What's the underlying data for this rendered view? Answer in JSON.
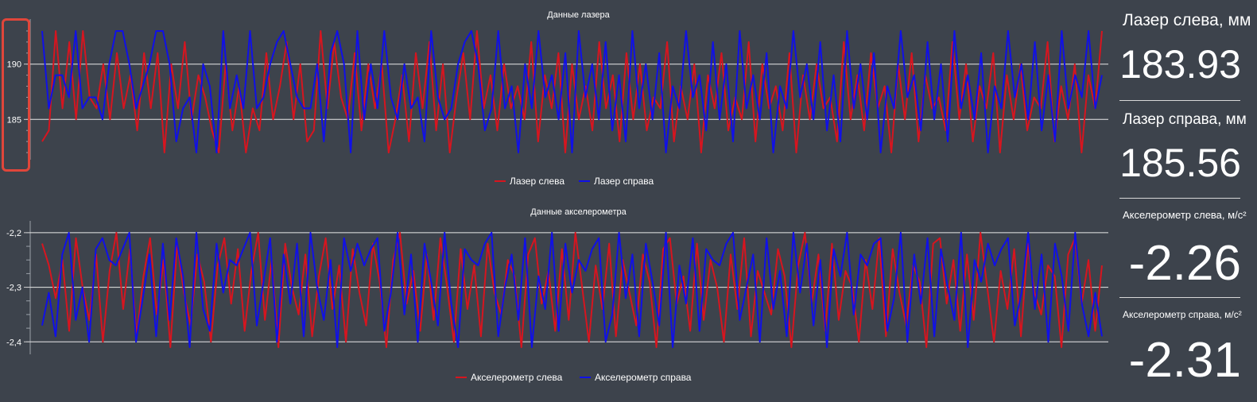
{
  "colors": {
    "background": "#3d434c",
    "left_series": "#d7151f",
    "right_series": "#1010e8",
    "highlight": "#e0463a"
  },
  "readouts": [
    {
      "label": "Лазер слева, мм",
      "value": "183.93"
    },
    {
      "label": "Лазер справа, мм",
      "value": "185.56"
    },
    {
      "label": "Акселерометр слева, м/с²",
      "value": "-2.26"
    },
    {
      "label": "Акселерометр справа, м/с²",
      "value": "-2.31"
    }
  ],
  "chart_data": [
    {
      "type": "line",
      "title": "Данные лазера",
      "xlabel": "",
      "ylabel": "",
      "ylim": [
        181.5,
        193.5
      ],
      "yticks": [
        185,
        190
      ],
      "ytick_labels": [
        "185",
        "190"
      ],
      "grid": "horizontal at labeled ticks",
      "legend": "bottom-center",
      "series": [
        {
          "name": "Лазер слева",
          "color": "#d7151f",
          "values": [
            183,
            184,
            193,
            186,
            192,
            185,
            193,
            187,
            186,
            190,
            185,
            191,
            186,
            189,
            184,
            191,
            186,
            191,
            182,
            190,
            186,
            192,
            185,
            189,
            187,
            184,
            182,
            190,
            184,
            188,
            182,
            186,
            184,
            191,
            185,
            188,
            192,
            185,
            190,
            183,
            184,
            193,
            186,
            192,
            187,
            185,
            191,
            184,
            190,
            186,
            190,
            182,
            185,
            189,
            183,
            191,
            186,
            192,
            184,
            190,
            182,
            187,
            191,
            185,
            193,
            186,
            189,
            184,
            190,
            186,
            188,
            185,
            192,
            183,
            189,
            186,
            191,
            182,
            190,
            185,
            188,
            184,
            192,
            186,
            189,
            183,
            191,
            185,
            190,
            184,
            187,
            186,
            192,
            183,
            188,
            185,
            190,
            182,
            189,
            186,
            191,
            184,
            187,
            185,
            192,
            183,
            190,
            186,
            188,
            184,
            191,
            182,
            189,
            185,
            190,
            186,
            187,
            183,
            192,
            185,
            189,
            184,
            191,
            186,
            188,
            182,
            190,
            185,
            191,
            183,
            189,
            186,
            187,
            184,
            192,
            185,
            190,
            183,
            188,
            186,
            191,
            182,
            189,
            185,
            190,
            184,
            187,
            186,
            192,
            183,
            188,
            185,
            190,
            182,
            189,
            186,
            193
          ]
        },
        {
          "name": "Лазер справа",
          "color": "#1010e8",
          "values": [
            193,
            186,
            189,
            189,
            187,
            193,
            186,
            187,
            187,
            185,
            190,
            193,
            193,
            190,
            186,
            188,
            190,
            193,
            193,
            190,
            183,
            186,
            187,
            182,
            190,
            188,
            182,
            193,
            186,
            189,
            186,
            193,
            186,
            187,
            190,
            192,
            193,
            190,
            187,
            186,
            186,
            190,
            183,
            191,
            193,
            190,
            182,
            193,
            185,
            190,
            186,
            193,
            187,
            185,
            190,
            186,
            187,
            183,
            193,
            187,
            185,
            186,
            190,
            192,
            193,
            190,
            184,
            186,
            193,
            186,
            188,
            182,
            190,
            186,
            193,
            187,
            189,
            185,
            191,
            182,
            193,
            187,
            190,
            185,
            192,
            184,
            189,
            183,
            193,
            186,
            190,
            185,
            191,
            182,
            188,
            186,
            193,
            187,
            189,
            184,
            192,
            185,
            190,
            183,
            193,
            186,
            189,
            185,
            191,
            182,
            188,
            186,
            193,
            187,
            190,
            185,
            192,
            184,
            189,
            183,
            193,
            186,
            190,
            185,
            191,
            182,
            188,
            186,
            193,
            187,
            189,
            184,
            192,
            185,
            190,
            183,
            193,
            186,
            189,
            185,
            191,
            182,
            188,
            186,
            193,
            187,
            190,
            185,
            192,
            184,
            189,
            183,
            193,
            186,
            189,
            187,
            193,
            186,
            189
          ]
        }
      ]
    },
    {
      "type": "line",
      "title": "Данные акселерометра",
      "xlabel": "",
      "ylabel": "",
      "ylim": [
        -2.42,
        -2.19
      ],
      "yticks": [
        -2.2,
        -2.3,
        -2.4
      ],
      "ytick_labels": [
        "-2,2",
        "-2,3",
        "-2,4"
      ],
      "grid": "horizontal at labeled ticks",
      "legend": "bottom-center",
      "series": [
        {
          "name": "Акселерометр слева",
          "color": "#d7151f",
          "values": [
            -2.22,
            -2.26,
            -2.32,
            -2.25,
            -2.38,
            -2.21,
            -2.3,
            -2.36,
            -2.24,
            -2.4,
            -2.27,
            -2.2,
            -2.34,
            -2.23,
            -2.39,
            -2.28,
            -2.21,
            -2.35,
            -2.25,
            -2.41,
            -2.22,
            -2.31,
            -2.37,
            -2.24,
            -2.29,
            -2.4,
            -2.26,
            -2.21,
            -2.33,
            -2.23,
            -2.38,
            -2.27,
            -2.2,
            -2.36,
            -2.25,
            -2.41,
            -2.22,
            -2.3,
            -2.35,
            -2.24,
            -2.39,
            -2.28,
            -2.21,
            -2.34,
            -2.26,
            -2.4,
            -2.23,
            -2.31,
            -2.37,
            -2.22,
            -2.29,
            -2.41,
            -2.25,
            -2.2,
            -2.33,
            -2.27,
            -2.38,
            -2.24,
            -2.36,
            -2.21,
            -2.3,
            -2.4,
            -2.23,
            -2.34,
            -2.26,
            -2.39,
            -2.22,
            -2.31,
            -2.35,
            -2.25,
            -2.28,
            -2.41,
            -2.24,
            -2.21,
            -2.33,
            -2.27,
            -2.38,
            -2.23,
            -2.36,
            -2.2,
            -2.3,
            -2.4,
            -2.26,
            -2.34,
            -2.22,
            -2.39,
            -2.25,
            -2.31,
            -2.37,
            -2.24,
            -2.29,
            -2.41,
            -2.23,
            -2.21,
            -2.33,
            -2.28,
            -2.38,
            -2.22,
            -2.36,
            -2.25,
            -2.3,
            -2.4,
            -2.24,
            -2.34,
            -2.21,
            -2.39,
            -2.27,
            -2.31,
            -2.35,
            -2.23,
            -2.28,
            -2.41,
            -2.26,
            -2.2,
            -2.33,
            -2.24,
            -2.38,
            -2.22,
            -2.36,
            -2.27,
            -2.3,
            -2.4,
            -2.25,
            -2.34,
            -2.21,
            -2.39,
            -2.23,
            -2.31,
            -2.37,
            -2.26,
            -2.29,
            -2.41,
            -2.22,
            -2.21,
            -2.33,
            -2.25,
            -2.38,
            -2.24,
            -2.36,
            -2.2,
            -2.3,
            -2.4,
            -2.27,
            -2.34,
            -2.23,
            -2.39,
            -2.22,
            -2.31,
            -2.35,
            -2.26,
            -2.28,
            -2.41,
            -2.24,
            -2.21,
            -2.33,
            -2.25,
            -2.38,
            -2.26
          ]
        },
        {
          "name": "Акселерометр справа",
          "color": "#1010e8",
          "values": [
            -2.37,
            -2.31,
            -2.39,
            -2.24,
            -2.2,
            -2.36,
            -2.3,
            -2.4,
            -2.23,
            -2.21,
            -2.25,
            -2.26,
            -2.23,
            -2.2,
            -2.4,
            -2.32,
            -2.24,
            -2.39,
            -2.22,
            -2.36,
            -2.21,
            -2.28,
            -2.41,
            -2.2,
            -2.34,
            -2.38,
            -2.22,
            -2.31,
            -2.25,
            -2.26,
            -2.23,
            -2.2,
            -2.37,
            -2.29,
            -2.21,
            -2.4,
            -2.24,
            -2.33,
            -2.22,
            -2.39,
            -2.2,
            -2.3,
            -2.36,
            -2.25,
            -2.41,
            -2.21,
            -2.27,
            -2.22,
            -2.26,
            -2.23,
            -2.21,
            -2.38,
            -2.31,
            -2.2,
            -2.35,
            -2.24,
            -2.4,
            -2.22,
            -2.29,
            -2.37,
            -2.2,
            -2.33,
            -2.41,
            -2.23,
            -2.25,
            -2.26,
            -2.22,
            -2.2,
            -2.39,
            -2.3,
            -2.24,
            -2.36,
            -2.21,
            -2.41,
            -2.28,
            -2.34,
            -2.2,
            -2.38,
            -2.22,
            -2.31,
            -2.25,
            -2.27,
            -2.23,
            -2.21,
            -2.4,
            -2.35,
            -2.2,
            -2.32,
            -2.24,
            -2.39,
            -2.22,
            -2.29,
            -2.37,
            -2.2,
            -2.41,
            -2.26,
            -2.33,
            -2.21,
            -2.38,
            -2.23,
            -2.25,
            -2.26,
            -2.22,
            -2.2,
            -2.36,
            -2.3,
            -2.24,
            -2.4,
            -2.21,
            -2.34,
            -2.27,
            -2.39,
            -2.2,
            -2.31,
            -2.22,
            -2.37,
            -2.25,
            -2.41,
            -2.23,
            -2.28,
            -2.2,
            -2.35,
            -2.24,
            -2.26,
            -2.22,
            -2.21,
            -2.38,
            -2.32,
            -2.2,
            -2.4,
            -2.24,
            -2.33,
            -2.21,
            -2.39,
            -2.23,
            -2.3,
            -2.36,
            -2.2,
            -2.41,
            -2.25,
            -2.29,
            -2.22,
            -2.26,
            -2.23,
            -2.21,
            -2.37,
            -2.31,
            -2.2,
            -2.34,
            -2.24,
            -2.4,
            -2.22,
            -2.28,
            -2.38,
            -2.2,
            -2.33,
            -2.39,
            -2.31,
            -2.39
          ]
        }
      ]
    }
  ]
}
